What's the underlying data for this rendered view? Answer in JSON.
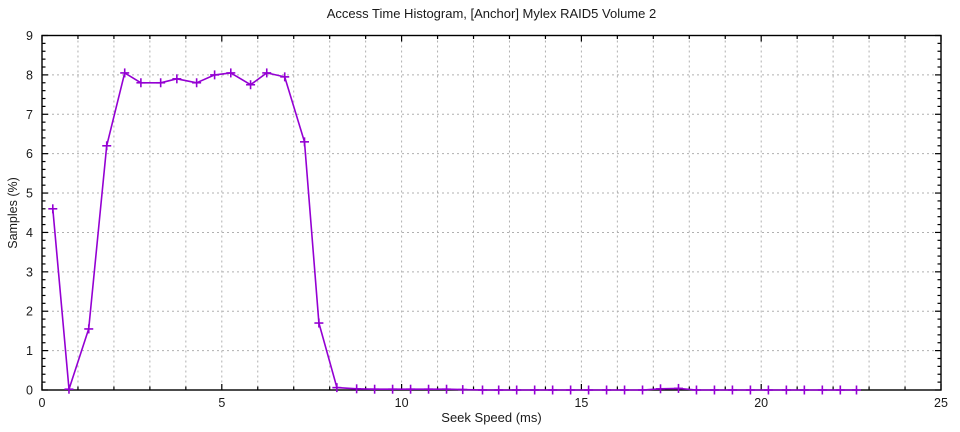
{
  "chart_data": {
    "type": "line",
    "title": "Access Time Histogram, [Anchor] Mylex RAID5 Volume 2",
    "xlabel": "Seek Speed (ms)",
    "ylabel": "Samples (%)",
    "xlim": [
      0,
      25
    ],
    "ylim": [
      0,
      9
    ],
    "xticks": [
      0,
      5,
      10,
      15,
      20,
      25
    ],
    "yticks": [
      0,
      1,
      2,
      3,
      4,
      5,
      6,
      7,
      8,
      9
    ],
    "minor_x_step": 1,
    "minor_y_step": 0.2,
    "grid": "dashed, at every 1 ms vertical and every 1 % horizontal",
    "legend": "none",
    "marker": "plus",
    "colors": {
      "line": "#9400d3",
      "grid": "#b0b0b0",
      "axis": "#000000",
      "background": "#ffffff",
      "text": "#1a1a1a"
    },
    "points": [
      [
        0.3,
        4.6
      ],
      [
        0.75,
        0.02
      ],
      [
        1.3,
        1.55
      ],
      [
        1.8,
        6.2
      ],
      [
        2.3,
        8.05
      ],
      [
        2.75,
        7.8
      ],
      [
        3.3,
        7.8
      ],
      [
        3.75,
        7.9
      ],
      [
        4.3,
        7.8
      ],
      [
        4.8,
        8.0
      ],
      [
        5.25,
        8.05
      ],
      [
        5.8,
        7.75
      ],
      [
        6.25,
        8.05
      ],
      [
        6.75,
        7.95
      ],
      [
        7.3,
        6.3
      ],
      [
        7.7,
        1.7
      ],
      [
        8.2,
        0.06
      ],
      [
        8.75,
        0.03
      ],
      [
        9.25,
        0.02
      ],
      [
        9.75,
        0.02
      ],
      [
        10.25,
        0.02
      ],
      [
        10.75,
        0.02
      ],
      [
        11.25,
        0.02
      ],
      [
        11.7,
        0.01
      ],
      [
        12.25,
        0
      ],
      [
        12.7,
        0
      ],
      [
        13.2,
        0
      ],
      [
        13.7,
        0
      ],
      [
        14.2,
        0
      ],
      [
        14.7,
        0
      ],
      [
        15.2,
        0
      ],
      [
        15.7,
        0
      ],
      [
        16.2,
        0
      ],
      [
        16.7,
        0
      ],
      [
        17.2,
        0.03
      ],
      [
        17.7,
        0.04
      ],
      [
        18.2,
        0
      ],
      [
        18.7,
        0
      ],
      [
        19.2,
        0
      ],
      [
        19.7,
        0
      ],
      [
        20.2,
        0
      ],
      [
        20.7,
        0
      ],
      [
        21.2,
        0
      ],
      [
        21.7,
        0
      ],
      [
        22.2,
        0
      ],
      [
        22.65,
        0
      ]
    ]
  }
}
